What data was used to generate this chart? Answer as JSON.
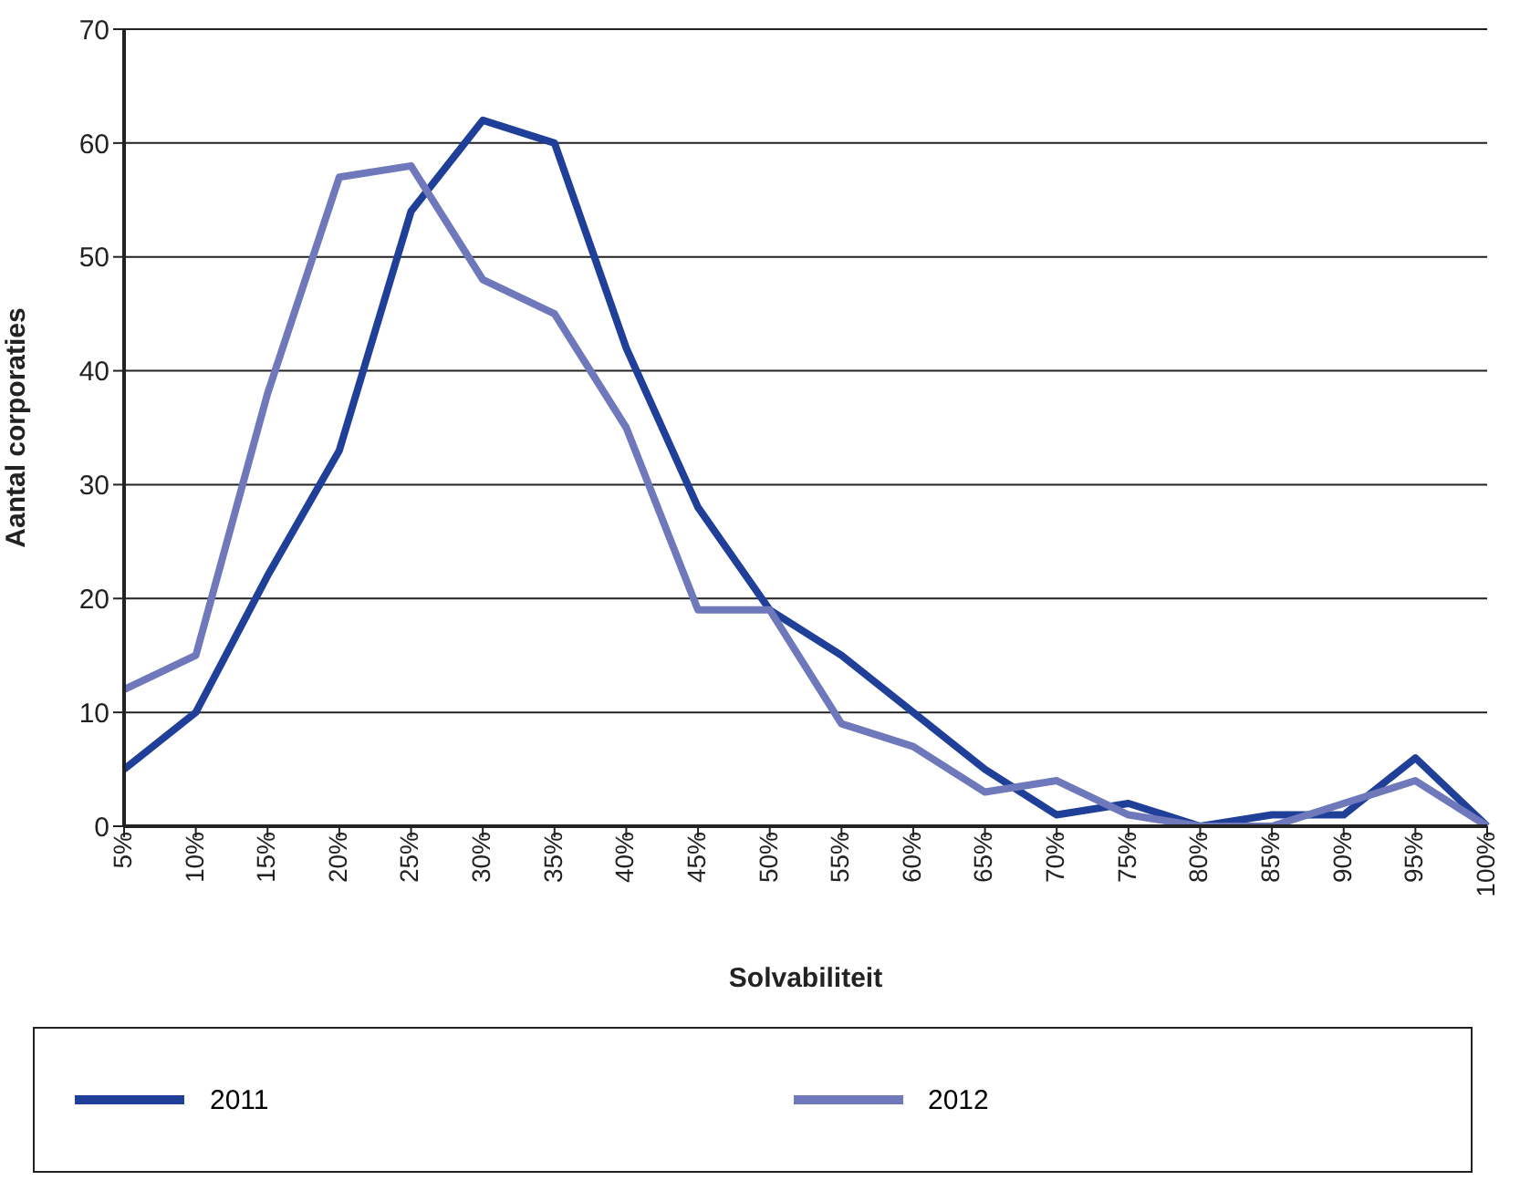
{
  "chart_data": {
    "type": "line",
    "xlabel": "Solvabiliteit",
    "ylabel": "Aantal corporaties",
    "categories": [
      "5%",
      "10%",
      "15%",
      "20%",
      "25%",
      "30%",
      "35%",
      "40%",
      "45%",
      "50%",
      "55%",
      "60%",
      "65%",
      "70%",
      "75%",
      "80%",
      "85%",
      "90%",
      "95%",
      "100%"
    ],
    "series": [
      {
        "name": "2011",
        "color": "#1f3f99",
        "values": [
          5,
          10,
          22,
          33,
          54,
          62,
          60,
          42,
          28,
          19,
          15,
          10,
          5,
          1,
          2,
          0,
          1,
          1,
          6,
          0
        ]
      },
      {
        "name": "2012",
        "color": "#6f78bb",
        "values": [
          12,
          15,
          38,
          57,
          58,
          48,
          45,
          35,
          19,
          19,
          9,
          7,
          3,
          4,
          1,
          0,
          0,
          2,
          4,
          0
        ]
      }
    ],
    "ylim": [
      0,
      70
    ],
    "yticks": [
      0,
      10,
      20,
      30,
      40,
      50,
      60,
      70
    ],
    "grid": "y",
    "legend": "bottom",
    "marker": "none",
    "line_style": "solid"
  }
}
